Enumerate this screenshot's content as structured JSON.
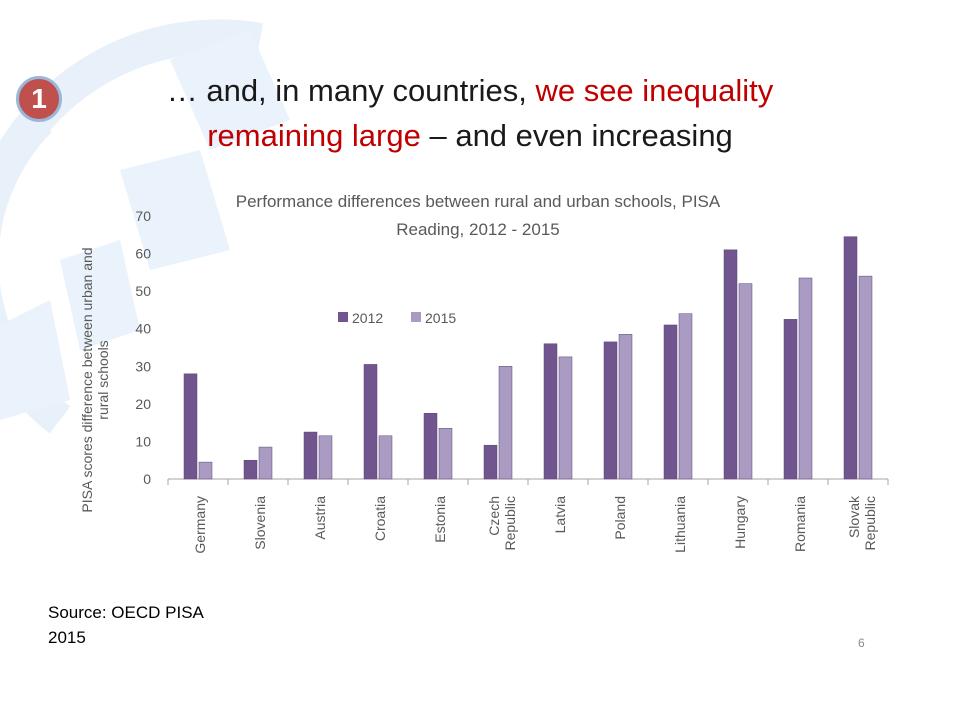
{
  "slide": {
    "badge": "1",
    "title_part1": "… and, in many countries, ",
    "title_red1": "we see inequality",
    "title_red2": "remaining large",
    "title_part2": " – and even increasing",
    "source_line1": "Source: OECD PISA",
    "source_line2": "2015",
    "page_number": "6"
  },
  "colors": {
    "series_2012": "#70558e",
    "series_2015": "#a99bc2",
    "title_red": "#c00000",
    "badge": "#c0504d",
    "watermark": "#e8f1fa"
  },
  "chart_data": {
    "type": "bar",
    "title": "Performance differences between rural and urban schools, PISA Reading, 2012 - 2015",
    "title_lines": [
      "Performance differences between rural and urban schools, PISA",
      "Reading, 2012 - 2015"
    ],
    "ylabel": "PISA scores difference between urban and rural schools",
    "ylabel_lines": [
      "PISA scores difference between urban and",
      "rural schools"
    ],
    "ylim": [
      0,
      70
    ],
    "yticks": [
      0,
      10,
      20,
      30,
      40,
      50,
      60,
      70
    ],
    "grid": false,
    "legend_position": "top-left",
    "categories": [
      [
        "Germany"
      ],
      [
        "Slovenia"
      ],
      [
        "Austria"
      ],
      [
        "Croatia"
      ],
      [
        "Estonia"
      ],
      [
        "Czech",
        "Republic"
      ],
      [
        "Latvia"
      ],
      [
        "Poland"
      ],
      [
        "Lithuania"
      ],
      [
        "Hungary"
      ],
      [
        "Romania"
      ],
      [
        "Slovak",
        "Republic"
      ]
    ],
    "series": [
      {
        "name": "2012",
        "values": [
          28,
          5,
          12.5,
          30.5,
          17.5,
          9,
          36,
          36.5,
          41,
          61,
          42.5,
          64.5
        ]
      },
      {
        "name": "2015",
        "values": [
          4.5,
          8.5,
          11.5,
          11.5,
          13.5,
          30,
          32.5,
          38.5,
          44,
          52,
          53.5,
          54
        ]
      }
    ]
  }
}
